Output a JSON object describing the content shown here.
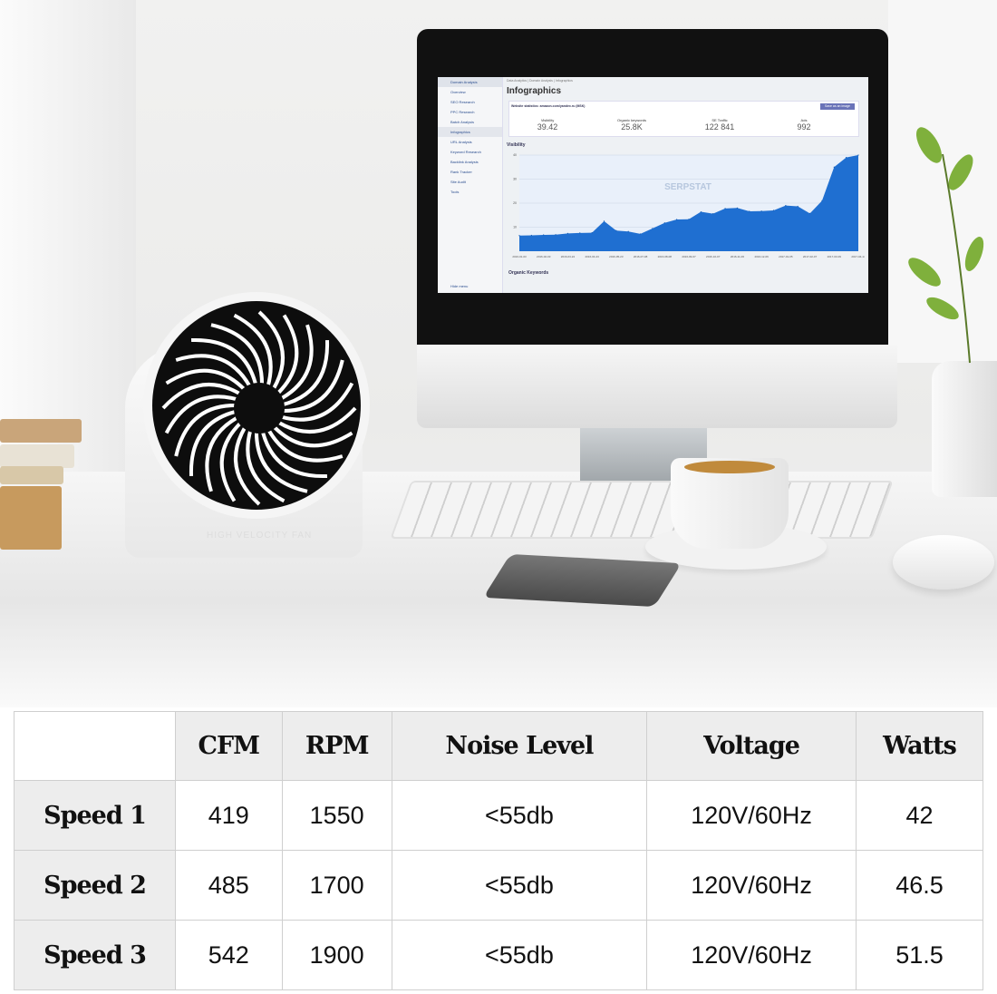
{
  "screen": {
    "breadcrumb": "Data Analytics | Domain Analysis | Infographics",
    "title": "Infographics",
    "sidebar": [
      "Domain Analysis",
      "Overview",
      "SEO Research",
      "PPC Research",
      "Batch Analysis",
      "Infographics",
      "URL Analysis",
      "Keyword Research",
      "Backlink Analysis",
      "Rank Tracker",
      "Site Audit",
      "Tools",
      "Hide menu"
    ],
    "stats_caption": "Website statistics: amazon.com/yandex.ru (MSK)",
    "save_button": "Save as an image",
    "stats": [
      {
        "label": "Visibility",
        "value": "39.42"
      },
      {
        "label": "Organic keywords",
        "value": "25.8K"
      },
      {
        "label": "SE Traffic",
        "value": "122 841"
      },
      {
        "label": "Ads",
        "value": "992"
      }
    ],
    "chart_title": "Visibility",
    "watermark": "SERPSTAT",
    "next_section": "Organic Keywords",
    "chart_data": {
      "type": "area",
      "y_ticks": [
        "10",
        "20",
        "30",
        "40"
      ],
      "ylim": [
        0,
        40
      ],
      "x_ticks": [
        "2016-01-03",
        "2016-02-03",
        "2016-03-24",
        "2016-04-23",
        "2016-05-23",
        "2016-07-08",
        "2016-08-08",
        "2016-09-07",
        "2016-10-07",
        "2016-11-06",
        "2016-12-06",
        "2017-01-05",
        "2017-02-07",
        "2017-03-09",
        "2017-04-14"
      ],
      "values": [
        6.5,
        6.6,
        6.8,
        6.9,
        7.4,
        7.6,
        7.7,
        12.5,
        8.6,
        8.2,
        7.2,
        9.5,
        11.8,
        13.2,
        13.3,
        16.4,
        15.6,
        17.8,
        18,
        16.6,
        16.7,
        17,
        19,
        18.7,
        15.7,
        21,
        35,
        39,
        40
      ],
      "color": "#1f6fd1"
    }
  },
  "fan_label": "HIGH VELOCITY FAN",
  "table": {
    "headers": [
      "",
      "CFM",
      "RPM",
      "Noise Level",
      "Voltage",
      "Watts"
    ],
    "rows": [
      [
        "Speed 1",
        "419",
        "1550",
        "<55db",
        "120V/60Hz",
        "42"
      ],
      [
        "Speed 2",
        "485",
        "1700",
        "<55db",
        "120V/60Hz",
        "46.5"
      ],
      [
        "Speed 3",
        "542",
        "1900",
        "<55db",
        "120V/60Hz",
        "51.5"
      ]
    ]
  }
}
